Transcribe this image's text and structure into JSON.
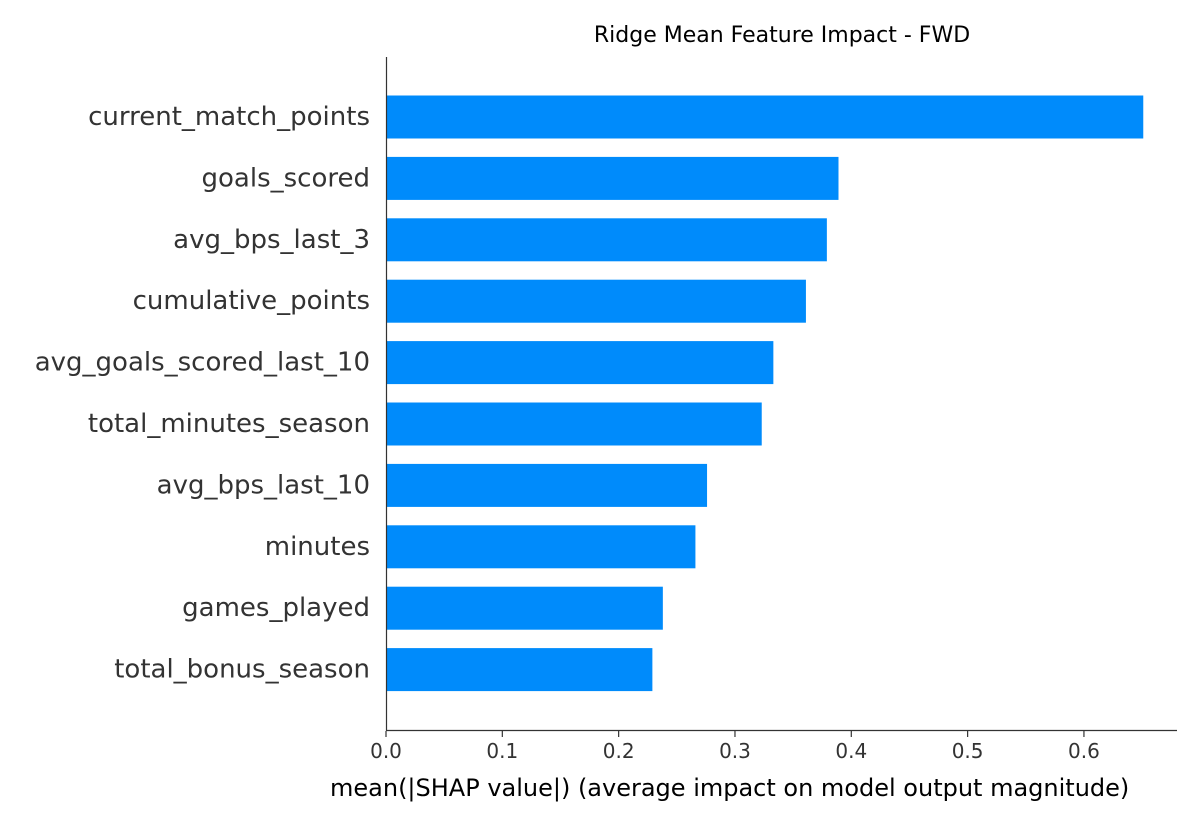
{
  "chart_data": {
    "type": "bar",
    "orientation": "horizontal",
    "title": "Ridge Mean Feature Impact - FWD",
    "xlabel": "mean(|SHAP value|) (average impact on model output magnitude)",
    "ylabel": "",
    "categories": [
      "current_match_points",
      "goals_scored",
      "avg_bps_last_3",
      "cumulative_points",
      "avg_goals_scored_last_10",
      "total_minutes_season",
      "avg_bps_last_10",
      "minutes",
      "games_played",
      "total_bonus_season"
    ],
    "values": [
      0.651,
      0.389,
      0.379,
      0.361,
      0.333,
      0.323,
      0.276,
      0.266,
      0.238,
      0.229
    ],
    "xlim": [
      0,
      0.68
    ],
    "xticks": [
      0.0,
      0.1,
      0.2,
      0.3,
      0.4,
      0.5,
      0.6
    ],
    "xtick_labels": [
      "0.0",
      "0.1",
      "0.2",
      "0.3",
      "0.4",
      "0.5",
      "0.6"
    ],
    "bar_color": "#008bfb",
    "axis_color": "#333333",
    "grid": false,
    "legend": "none"
  }
}
